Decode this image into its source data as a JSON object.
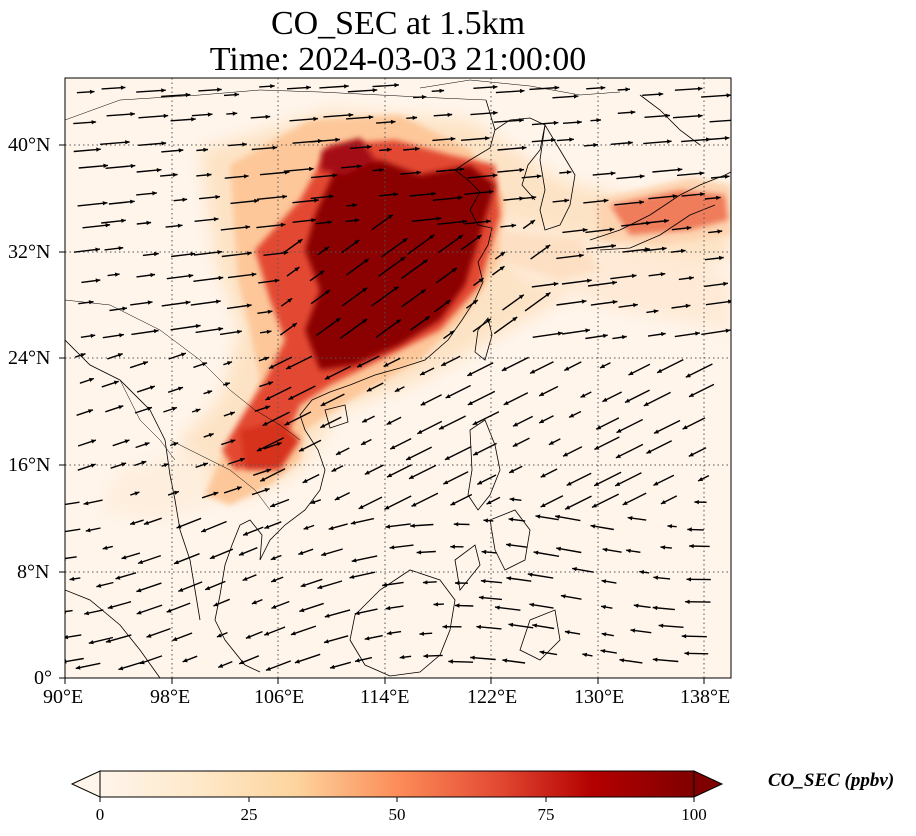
{
  "header": {
    "title": "CO_SEC at 1.5km",
    "subtitle": "Time: 2024-03-03 21:00:00"
  },
  "map": {
    "lon_range": [
      90,
      140
    ],
    "lat_range": [
      0,
      45
    ],
    "lon_ticks": [
      "90°E",
      "98°E",
      "106°E",
      "114°E",
      "122°E",
      "130°E",
      "138°E"
    ],
    "lat_ticks": [
      "0°",
      "8°N",
      "16°N",
      "24°N",
      "32°N",
      "40°N"
    ],
    "grid_style": "dotted",
    "background_color": "#fff5eb"
  },
  "colorbar": {
    "label": "CO_SEC (ppbv)",
    "ticks": [
      "0",
      "25",
      "50",
      "75",
      "100"
    ],
    "range": [
      0,
      100
    ],
    "colormap": [
      "#fff5eb",
      "#fdd49e",
      "#fdbb84",
      "#fc8d59",
      "#e34a33",
      "#b30000",
      "#7f0000"
    ],
    "extend": "both"
  },
  "colors": {
    "high": "#7f0000",
    "mid": "#d7301f",
    "low": "#fdbb84",
    "arrow": "#000000",
    "coast": "#000000"
  }
}
